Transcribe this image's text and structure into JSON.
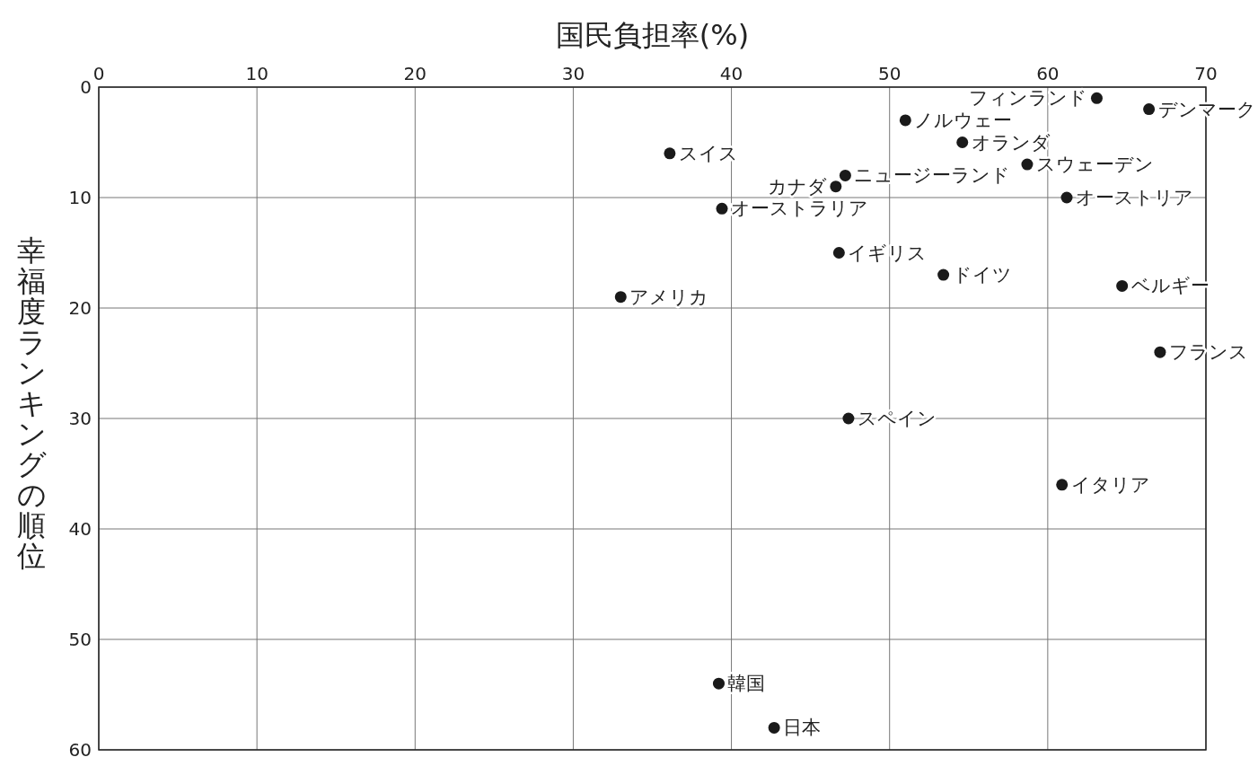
{
  "chart_data": {
    "type": "scatter",
    "xlabel": "国民負担率(%)",
    "ylabel": "幸福度ランキングの順位",
    "xlim": [
      0,
      70
    ],
    "xticks": [
      0,
      10,
      20,
      30,
      40,
      50,
      60,
      70
    ],
    "ylim": [
      60,
      0
    ],
    "yticks": [
      0,
      10,
      20,
      30,
      40,
      50,
      60
    ],
    "grid": true,
    "marker": "circle",
    "color": "#1a1a1a",
    "x": [
      63.1,
      66.4,
      51.0,
      54.6,
      36.1,
      58.7,
      47.2,
      46.6,
      61.2,
      39.4,
      46.8,
      53.4,
      64.7,
      33.0,
      67.1,
      47.4,
      60.9,
      39.2,
      42.7
    ],
    "values": [
      1,
      2,
      3,
      5,
      6,
      7,
      8,
      9,
      10,
      11,
      15,
      17,
      18,
      19,
      24,
      30,
      36,
      54,
      58
    ],
    "annotations": [
      {
        "text": "フィンランド",
        "x": 63.1,
        "y": 1
      },
      {
        "text": "デンマーク",
        "x": 66.4,
        "y": 2
      },
      {
        "text": "ノルウェー",
        "x": 51.0,
        "y": 3
      },
      {
        "text": "オランダ",
        "x": 54.6,
        "y": 5
      },
      {
        "text": "スイス",
        "x": 36.1,
        "y": 6
      },
      {
        "text": "スウェーデン",
        "x": 58.7,
        "y": 7
      },
      {
        "text": "ニュージーランド",
        "x": 47.2,
        "y": 8
      },
      {
        "text": "カナダ",
        "x": 46.6,
        "y": 9
      },
      {
        "text": "オーストリア",
        "x": 61.2,
        "y": 10
      },
      {
        "text": "オーストラリア",
        "x": 39.4,
        "y": 11
      },
      {
        "text": "イギリス",
        "x": 46.8,
        "y": 15
      },
      {
        "text": "ドイツ",
        "x": 53.4,
        "y": 17
      },
      {
        "text": "ベルギー",
        "x": 64.7,
        "y": 18
      },
      {
        "text": "アメリカ",
        "x": 33.0,
        "y": 19
      },
      {
        "text": "フランス",
        "x": 67.1,
        "y": 24
      },
      {
        "text": "スペイン",
        "x": 47.4,
        "y": 30
      },
      {
        "text": "イタリア",
        "x": 60.9,
        "y": 36
      },
      {
        "text": "韓国",
        "x": 39.2,
        "y": 54
      },
      {
        "text": "日本",
        "x": 42.7,
        "y": 58
      }
    ]
  }
}
